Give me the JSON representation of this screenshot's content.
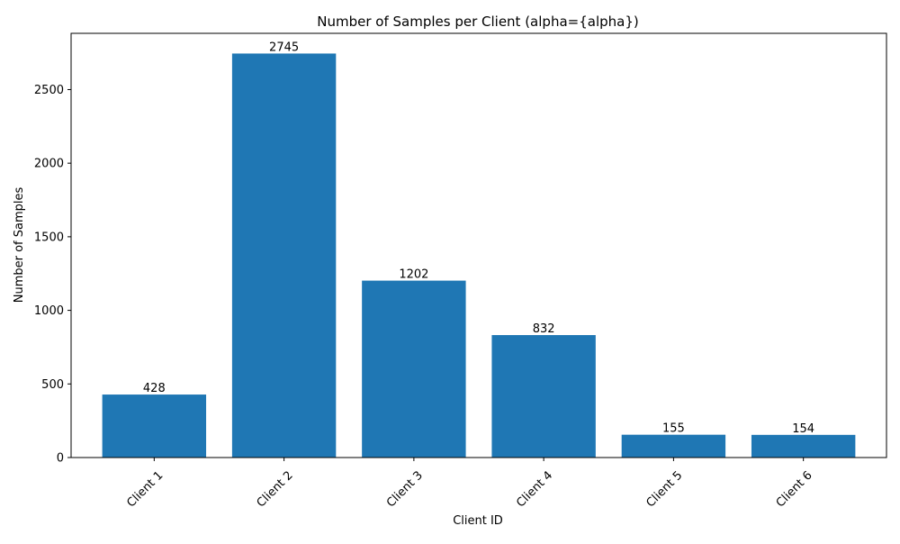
{
  "chart_data": {
    "type": "bar",
    "title": "Number of Samples per Client (alpha={alpha})",
    "xlabel": "Client ID",
    "ylabel": "Number of Samples",
    "categories": [
      "Client 1",
      "Client 2",
      "Client 3",
      "Client 4",
      "Client 5",
      "Client 6"
    ],
    "values": [
      428,
      2745,
      1202,
      832,
      155,
      154
    ],
    "data_labels": [
      "428",
      "2745",
      "1202",
      "832",
      "155",
      "154"
    ],
    "ylim": [
      0,
      2882.25
    ],
    "yticks": [
      0,
      500,
      1000,
      1500,
      2000,
      2500
    ],
    "ytick_labels": [
      "0",
      "500",
      "1000",
      "1500",
      "2000",
      "2500"
    ],
    "xtick_rotation": 45,
    "grid": false,
    "legend": false,
    "bar_color": "#1f77b4"
  }
}
